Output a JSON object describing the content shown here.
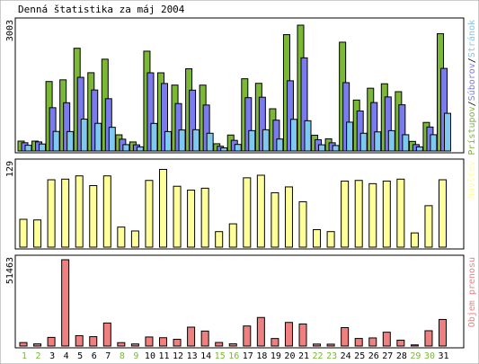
{
  "title": "Denná štatistika za máj 2004",
  "colors": {
    "background": "#ffffff",
    "frame": "#000000",
    "hits": "#7ab836",
    "files": "#7b7bf0",
    "pages": "#7fc8ef",
    "visits": "#ffff99",
    "kbytes": "#f08080",
    "weekday_text": "#000000",
    "weekend_text": "#7ab836"
  },
  "chart_data": [
    {
      "type": "bar",
      "title": "Denná štatistika za máj 2004",
      "ymax_label": "3003",
      "ylim": [
        0,
        3003
      ],
      "legend_parts": [
        "Prístupov",
        "/",
        "Súborov",
        "/",
        "Stránok"
      ],
      "categories": [
        "1",
        "2",
        "3",
        "4",
        "5",
        "6",
        "7",
        "8",
        "9",
        "10",
        "11",
        "12",
        "13",
        "14",
        "15",
        "16",
        "17",
        "18",
        "19",
        "20",
        "21",
        "22",
        "23",
        "24",
        "25",
        "26",
        "27",
        "28",
        "29",
        "30",
        "31"
      ],
      "series": [
        {
          "name": "Prístupov",
          "values": [
            236,
            236,
            1658,
            1698,
            2452,
            1868,
            2191,
            386,
            216,
            2382,
            1866,
            1573,
            1962,
            1572,
            173,
            381,
            1724,
            1615,
            1008,
            2777,
            3003,
            377,
            291,
            2597,
            1216,
            1498,
            1604,
            1415,
            229,
            682,
            2799
          ]
        },
        {
          "name": "Súborov",
          "values": [
            197,
            217,
            1033,
            1151,
            1758,
            1456,
            1248,
            282,
            147,
            1866,
            1611,
            1132,
            1452,
            1097,
            113,
            254,
            1272,
            1283,
            736,
            1676,
            2223,
            269,
            196,
            1631,
            955,
            1156,
            1290,
            1102,
            153,
            572,
            1971
          ]
        },
        {
          "name": "Stránok",
          "values": [
            137,
            167,
            467,
            464,
            761,
            660,
            566,
            152,
            98,
            658,
            464,
            502,
            508,
            423,
            74,
            157,
            486,
            507,
            286,
            756,
            722,
            148,
            131,
            688,
            423,
            456,
            485,
            388,
            97,
            388,
            899
          ]
        }
      ]
    },
    {
      "type": "bar",
      "ymax_label": "129",
      "ylim": [
        0,
        129
      ],
      "legend": "Návštev",
      "categories": [
        "1",
        "2",
        "3",
        "4",
        "5",
        "6",
        "7",
        "8",
        "9",
        "10",
        "11",
        "12",
        "13",
        "14",
        "15",
        "16",
        "17",
        "18",
        "19",
        "20",
        "21",
        "22",
        "23",
        "24",
        "25",
        "26",
        "27",
        "28",
        "29",
        "30",
        "31"
      ],
      "series": [
        {
          "name": "Návštev",
          "values": [
            43,
            42,
            104,
            105,
            110,
            95,
            110,
            31,
            25,
            103,
            120,
            94,
            88,
            91,
            24,
            36,
            107,
            111,
            84,
            93,
            70,
            27,
            24,
            102,
            103,
            98,
            102,
            105,
            22,
            64,
            104
          ]
        }
      ]
    },
    {
      "type": "bar",
      "ymax_label": "51463",
      "ylim": [
        0,
        51463
      ],
      "legend": "Objem prenosu",
      "categories": [
        "1",
        "2",
        "3",
        "4",
        "5",
        "6",
        "7",
        "8",
        "9",
        "10",
        "11",
        "12",
        "13",
        "14",
        "15",
        "16",
        "17",
        "18",
        "19",
        "20",
        "21",
        "22",
        "23",
        "24",
        "25",
        "26",
        "27",
        "28",
        "29",
        "30",
        "31"
      ],
      "series": [
        {
          "name": "Objem prenosu",
          "values": [
            2059,
            1276,
            5148,
            51463,
            6176,
            5585,
            13728,
            2018,
            1236,
            5398,
            4960,
            4007,
            11264,
            8930,
            2111,
            1300,
            11954,
            17027,
            4480,
            14081,
            13134,
            1180,
            1123,
            10982,
            4507,
            4843,
            8232,
            3472,
            676,
            9116,
            15847
          ]
        }
      ]
    }
  ],
  "weekend_days": [
    "1",
    "2",
    "8",
    "9",
    "15",
    "16",
    "22",
    "23",
    "29",
    "30"
  ]
}
